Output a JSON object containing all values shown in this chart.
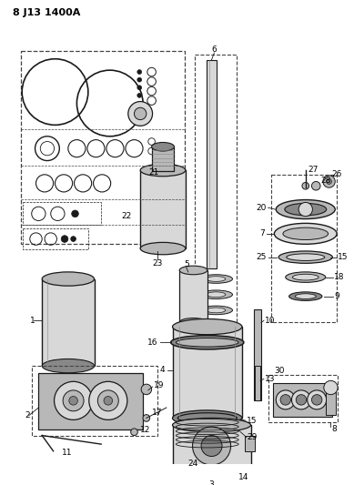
{
  "title": "8 J13 1400A",
  "bg_color": "#ffffff",
  "line_color": "#1a1a1a",
  "gray_light": "#d8d8d8",
  "gray_mid": "#b8b8b8",
  "gray_dark": "#888888",
  "dashed_color": "#444444",
  "fig_width": 3.89,
  "fig_height": 5.33,
  "dpi": 100
}
